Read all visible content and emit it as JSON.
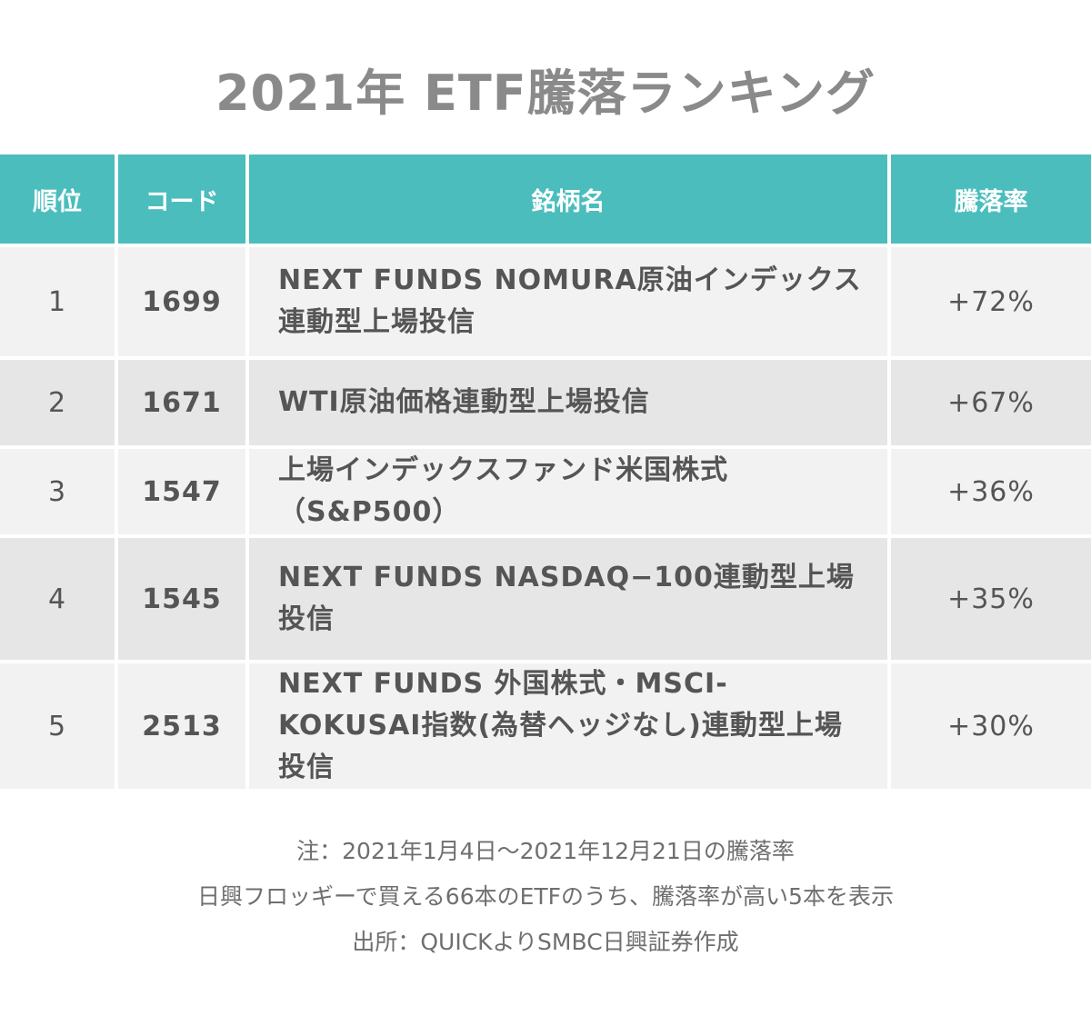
{
  "title": "2021年 ETF騰落ランキング",
  "table": {
    "headers": {
      "rank": "順位",
      "code": "コード",
      "name": "銘柄名",
      "change": "騰落率"
    },
    "rows": [
      {
        "rank": "1",
        "code": "1699",
        "name": "NEXT FUNDS NOMURA原油インデックス連動型上場投信",
        "change": "+72%"
      },
      {
        "rank": "2",
        "code": "1671",
        "name": "WTI原油価格連動型上場投信",
        "change": "+67%"
      },
      {
        "rank": "3",
        "code": "1547",
        "name": "上場インデックスファンド米国株式（S&P500）",
        "change": "+36%"
      },
      {
        "rank": "4",
        "code": "1545",
        "name": "NEXT FUNDS NASDAQ−100連動型上場投信",
        "change": "+35%"
      },
      {
        "rank": "5",
        "code": "2513",
        "name": "NEXT FUNDS 外国株式・MSCI-KOKUSAI指数(為替ヘッジなし)連動型上場投信",
        "change": "+30%"
      }
    ]
  },
  "notes": {
    "line1": "注：2021年1月4日〜2021年12月21日の騰落率",
    "line2": "日興フロッギーで買える66本のETFのうち、騰落率が高い5本を表示",
    "line3": "出所：QUICKよりSMBC日興証券作成"
  },
  "colors": {
    "header_bg": "#4bbdbd",
    "row_odd": "#f2f2f2",
    "row_even": "#e6e6e6",
    "title": "#8a8a8a"
  }
}
